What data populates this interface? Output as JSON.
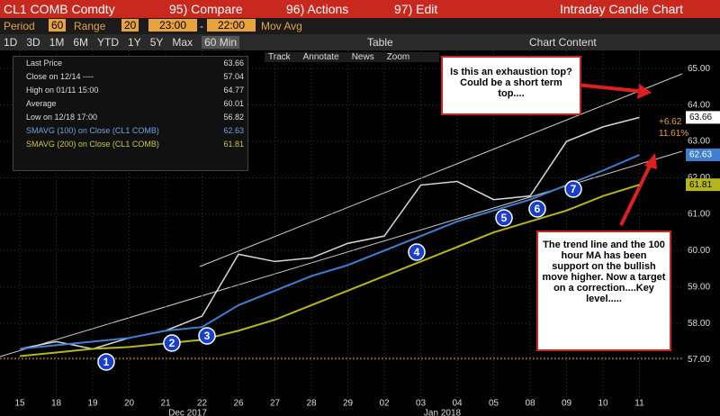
{
  "header": {
    "ticker": "CL1 COMB Comdty",
    "menu": [
      "95) Compare",
      "96) Actions",
      "97) Edit"
    ],
    "chart_name": "Intraday Candle Chart"
  },
  "settings": {
    "period_label": "Period",
    "period": "60",
    "range_label": "Range",
    "range": "20",
    "start": "23:00",
    "dash": "-",
    "end": "22:00",
    "mov_avg": "Mov Avg"
  },
  "ranges": [
    "1D",
    "3D",
    "1M",
    "6M",
    "YTD",
    "1Y",
    "5Y",
    "Max",
    "60 Min"
  ],
  "table_label": "Table",
  "chart_content": "Chart Content",
  "tools": [
    "Track",
    "Annotate",
    "News",
    "Zoom"
  ],
  "legend": [
    {
      "label": "Last Price",
      "value": 63.66
    },
    {
      "label": "Close on 12/14 ----",
      "value": 57.04
    },
    {
      "label": "High on 01/11 15:00",
      "value": 64.77
    },
    {
      "label": "Average",
      "value": 60.01
    },
    {
      "label": "Low on 12/18 17:00",
      "value": 56.82
    },
    {
      "label": "SMAVG (100) on Close (CL1 COMB)",
      "value": 62.63
    },
    {
      "label": "SMAVG (200) on Close (CL1 COMB)",
      "value": 61.81
    }
  ],
  "chart_data": {
    "type": "line",
    "categories": [
      "15",
      "18",
      "19",
      "20",
      "21",
      "22",
      "26",
      "27",
      "28",
      "29",
      "02",
      "03",
      "04",
      "05",
      "08",
      "09",
      "10",
      "11"
    ],
    "months": [
      "Dec 2017",
      "Jan 2018"
    ],
    "series": [
      {
        "name": "Last Price",
        "color": "#d8d8d8",
        "values": [
          57.3,
          57.5,
          57.3,
          57.6,
          57.8,
          58.2,
          59.9,
          59.7,
          59.8,
          60.2,
          60.4,
          61.8,
          61.9,
          61.4,
          61.5,
          63.0,
          63.4,
          63.66
        ]
      },
      {
        "name": "SMAVG (100)",
        "color": "#3f7fd0",
        "values": [
          57.3,
          57.4,
          57.5,
          57.6,
          57.8,
          57.9,
          58.5,
          58.9,
          59.3,
          59.6,
          60.0,
          60.4,
          60.8,
          61.1,
          61.4,
          61.8,
          62.2,
          62.63
        ]
      },
      {
        "name": "SMAVG (200)",
        "color": "#b5b51c",
        "values": [
          57.1,
          57.2,
          57.3,
          57.35,
          57.45,
          57.55,
          57.8,
          58.1,
          58.5,
          58.9,
          59.3,
          59.7,
          60.1,
          60.5,
          60.8,
          61.1,
          61.5,
          61.81
        ]
      }
    ],
    "ylim": [
      55.95,
      65.5
    ],
    "yticks": [
      {
        "value": 57,
        "label": "57.00"
      },
      {
        "value": 58,
        "label": "58.00"
      },
      {
        "value": 59,
        "label": "59.00"
      },
      {
        "value": 60,
        "label": "60.00"
      },
      {
        "value": 61,
        "label": "61.00"
      },
      {
        "value": 62,
        "label": "62.00"
      },
      {
        "value": 63,
        "label": "63.00"
      },
      {
        "value": 64,
        "label": "64.00"
      },
      {
        "value": 65,
        "label": "65.00"
      }
    ],
    "grid": true,
    "right_labels": {
      "last": 63.66,
      "change": "+6.62",
      "change_pct": "11.61%",
      "ma100": 62.63,
      "ma200": 61.81
    },
    "touches": [
      "1",
      "2",
      "3",
      "4",
      "5",
      "6",
      "7"
    ],
    "annotations": [
      "Is this an exhaustion top?  Could be a short term top....",
      "The trend line and the 100 hour MA has been support on the bullish move higher. Now a target on a correction....Key level....."
    ]
  }
}
